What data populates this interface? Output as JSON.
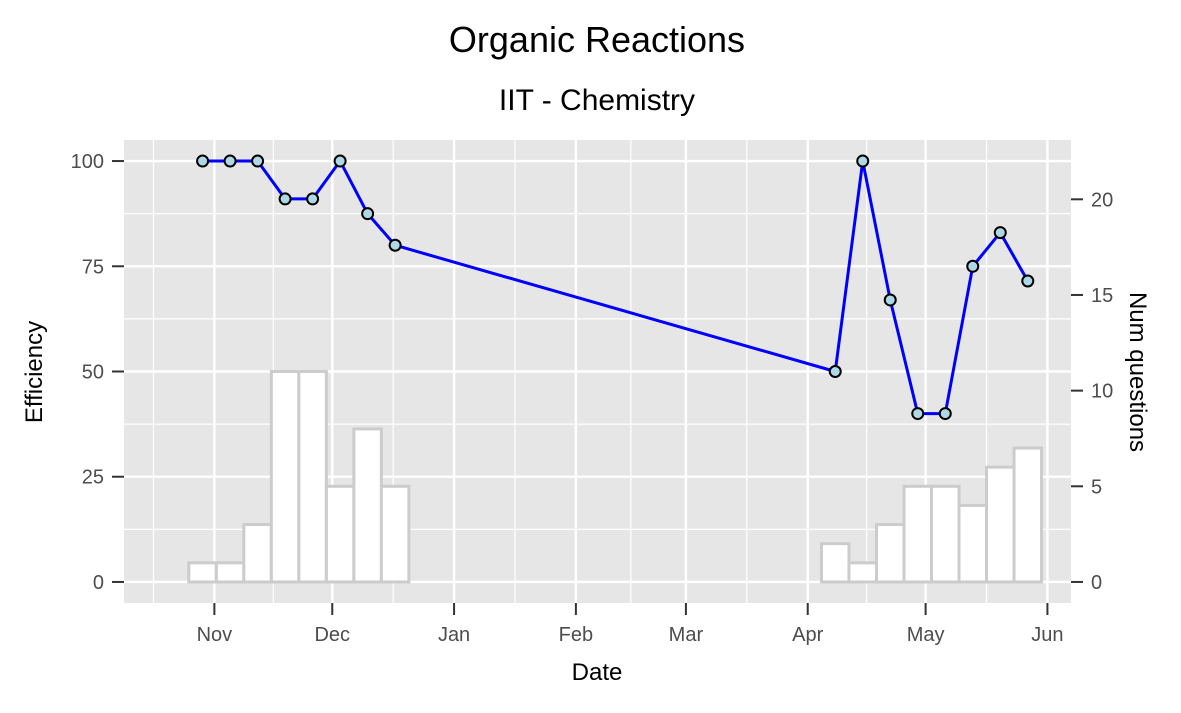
{
  "chart_data": {
    "type": "bar+line",
    "title": "Organic Reactions",
    "subtitle": "IIT - Chemistry",
    "xlabel": "Date",
    "ylabel": "Efficiency",
    "y2label": "Num questions",
    "x_ticks": [
      {
        "date": "2017-11-01",
        "label": "Nov"
      },
      {
        "date": "2017-12-01",
        "label": "Dec"
      },
      {
        "date": "2018-01-01",
        "label": "Jan"
      },
      {
        "date": "2018-02-01",
        "label": "Feb"
      },
      {
        "date": "2018-03-01",
        "label": "Mar"
      },
      {
        "date": "2018-04-01",
        "label": "Apr"
      },
      {
        "date": "2018-05-01",
        "label": "May"
      },
      {
        "date": "2018-06-01",
        "label": "Jun"
      }
    ],
    "y_ticks": [
      0,
      25,
      50,
      75,
      100
    ],
    "y2_ticks": [
      0,
      5,
      10,
      15,
      20
    ],
    "xlim": [
      "2017-10-09",
      "2018-06-07"
    ],
    "ylim": [
      -5,
      105
    ],
    "y2lim": [
      -1.1,
      23.1
    ],
    "grid": true,
    "panel_color": "#e6e6e6",
    "line_color": "#0000ff",
    "point_fill": "#add8e6",
    "bar_fill": "#ffffff",
    "bar_outline": "#cccccc",
    "series": [
      {
        "type": "bar",
        "axis": "right",
        "x": [
          "2017-10-29",
          "2017-11-05",
          "2017-11-12",
          "2017-11-19",
          "2017-11-26",
          "2017-12-03",
          "2017-12-10",
          "2017-12-17",
          "2018-04-08",
          "2018-04-15",
          "2018-04-22",
          "2018-04-29",
          "2018-05-06",
          "2018-05-13",
          "2018-05-20",
          "2018-05-27"
        ],
        "values": [
          1,
          1,
          3,
          11,
          11,
          5,
          8,
          5,
          2,
          1,
          3,
          5,
          5,
          4,
          6,
          7
        ]
      },
      {
        "type": "line",
        "axis": "left",
        "x": [
          "2017-10-29",
          "2017-11-05",
          "2017-11-12",
          "2017-11-19",
          "2017-11-26",
          "2017-12-03",
          "2017-12-10",
          "2017-12-17",
          "2018-04-08",
          "2018-04-15",
          "2018-04-22",
          "2018-04-29",
          "2018-05-06",
          "2018-05-13",
          "2018-05-20",
          "2018-05-27"
        ],
        "values": [
          100,
          100,
          100,
          91,
          91,
          100,
          87.5,
          80,
          50,
          100,
          67,
          40,
          40,
          75,
          83,
          71.5
        ]
      }
    ]
  }
}
